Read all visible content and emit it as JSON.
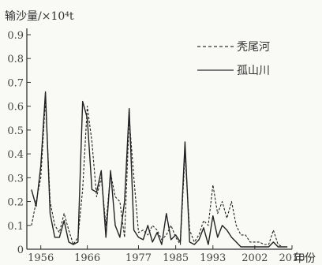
{
  "chart_data": {
    "type": "line",
    "ylabel": "输沙量/×10⁴t",
    "xlabel": "年份",
    "ylim": [
      0,
      0.9
    ],
    "xlim": [
      1953,
      2010
    ],
    "y_ticks": [
      0,
      0.1,
      0.2,
      0.3,
      0.4,
      0.5,
      0.6,
      0.7,
      0.8,
      0.9
    ],
    "y_tick_labels": [
      "0",
      "0.1",
      "0.2",
      "0.3",
      "0.4",
      "0.5",
      "0.6",
      "0.7",
      "0.8",
      "0.9"
    ],
    "x_ticks": [
      1956,
      1966,
      1977,
      1985,
      1993,
      2002,
      2010
    ],
    "x_tick_labels": [
      "1956",
      "1966",
      "1977",
      "1985",
      "1993",
      "2002",
      "2010"
    ],
    "grid": false,
    "legend_position": "top-right",
    "series": [
      {
        "name": "秃尾河",
        "style": "dashed",
        "x": [
          1954,
          1955,
          1956,
          1957,
          1958,
          1959,
          1960,
          1961,
          1962,
          1963,
          1964,
          1965,
          1966,
          1967,
          1968,
          1969,
          1970,
          1971,
          1972,
          1973,
          1974,
          1975,
          1976,
          1977,
          1978,
          1979,
          1980,
          1981,
          1982,
          1983,
          1984,
          1985,
          1986,
          1987,
          1988,
          1989,
          1990,
          1991,
          1992,
          1993,
          1994,
          1995,
          1996,
          1997,
          1998,
          1999,
          2000,
          2001,
          2002,
          2003,
          2004,
          2005,
          2006,
          2007,
          2008,
          2009
        ],
        "values": [
          0.1,
          0.2,
          0.3,
          0.63,
          0.2,
          0.1,
          0.07,
          0.15,
          0.08,
          0.02,
          0.05,
          0.25,
          0.6,
          0.45,
          0.22,
          0.3,
          0.1,
          0.32,
          0.22,
          0.2,
          0.05,
          0.55,
          0.3,
          0.07,
          0.08,
          0.06,
          0.1,
          0.08,
          0.04,
          0.06,
          0.1,
          0.05,
          0.02,
          0.4,
          0.08,
          0.03,
          0.06,
          0.12,
          0.1,
          0.27,
          0.15,
          0.2,
          0.13,
          0.2,
          0.1,
          0.06,
          0.06,
          0.03,
          0.03,
          0.03,
          0.02,
          0.02,
          0.08,
          0.02,
          0.01,
          0.01
        ]
      },
      {
        "name": "孤山川",
        "style": "solid",
        "x": [
          1954,
          1955,
          1956,
          1957,
          1958,
          1959,
          1960,
          1961,
          1962,
          1963,
          1964,
          1965,
          1966,
          1967,
          1968,
          1969,
          1970,
          1971,
          1972,
          1973,
          1974,
          1975,
          1976,
          1977,
          1978,
          1979,
          1980,
          1981,
          1982,
          1983,
          1984,
          1985,
          1986,
          1987,
          1988,
          1989,
          1990,
          1991,
          1992,
          1993,
          1994,
          1995,
          1996,
          1997,
          1998,
          1999,
          2000,
          2001,
          2002,
          2003,
          2004,
          2005,
          2006,
          2007,
          2008,
          2009
        ],
        "values": [
          0.25,
          0.18,
          0.35,
          0.66,
          0.15,
          0.05,
          0.05,
          0.12,
          0.03,
          0.02,
          0.03,
          0.62,
          0.55,
          0.25,
          0.24,
          0.33,
          0.05,
          0.33,
          0.1,
          0.05,
          0.2,
          0.59,
          0.08,
          0.05,
          0.04,
          0.1,
          0.03,
          0.07,
          0.02,
          0.15,
          0.04,
          0.06,
          0.03,
          0.45,
          0.03,
          0.02,
          0.04,
          0.09,
          0.02,
          0.14,
          0.05,
          0.1,
          0.08,
          0.05,
          0.03,
          0.01,
          0.01,
          0.01,
          0.01,
          0.01,
          0.01,
          0.01,
          0.03,
          0.01,
          0.01,
          0.01
        ]
      }
    ]
  }
}
